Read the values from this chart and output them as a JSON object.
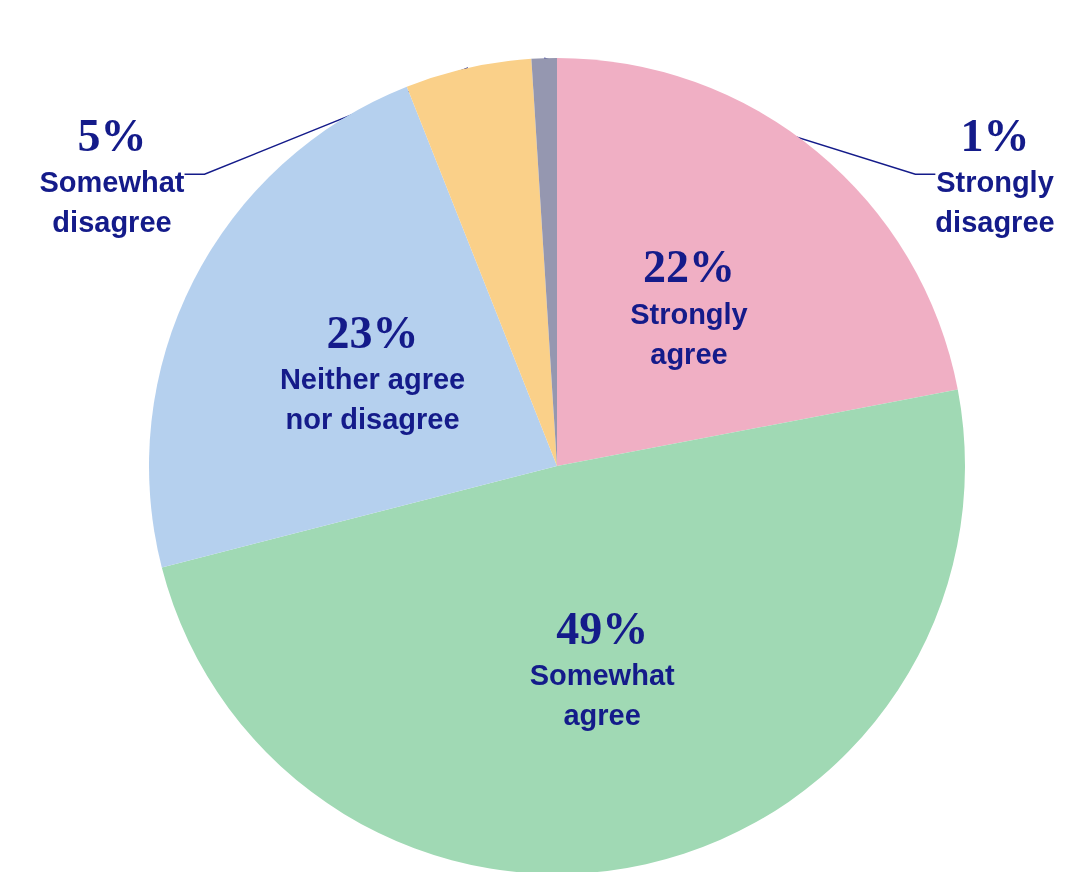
{
  "chart_data": {
    "type": "pie",
    "categories": [
      "Strongly agree",
      "Somewhat agree",
      "Neither agree nor disagree",
      "Somewhat disagree",
      "Strongly disagree"
    ],
    "values": [
      22,
      49,
      23,
      5,
      1
    ],
    "value_labels": [
      "22%",
      "49%",
      "23%",
      "5%",
      "1%"
    ],
    "colors": [
      "#f0afc4",
      "#a0d9b4",
      "#b5d0ee",
      "#fad089",
      "#9597b0"
    ]
  }
}
